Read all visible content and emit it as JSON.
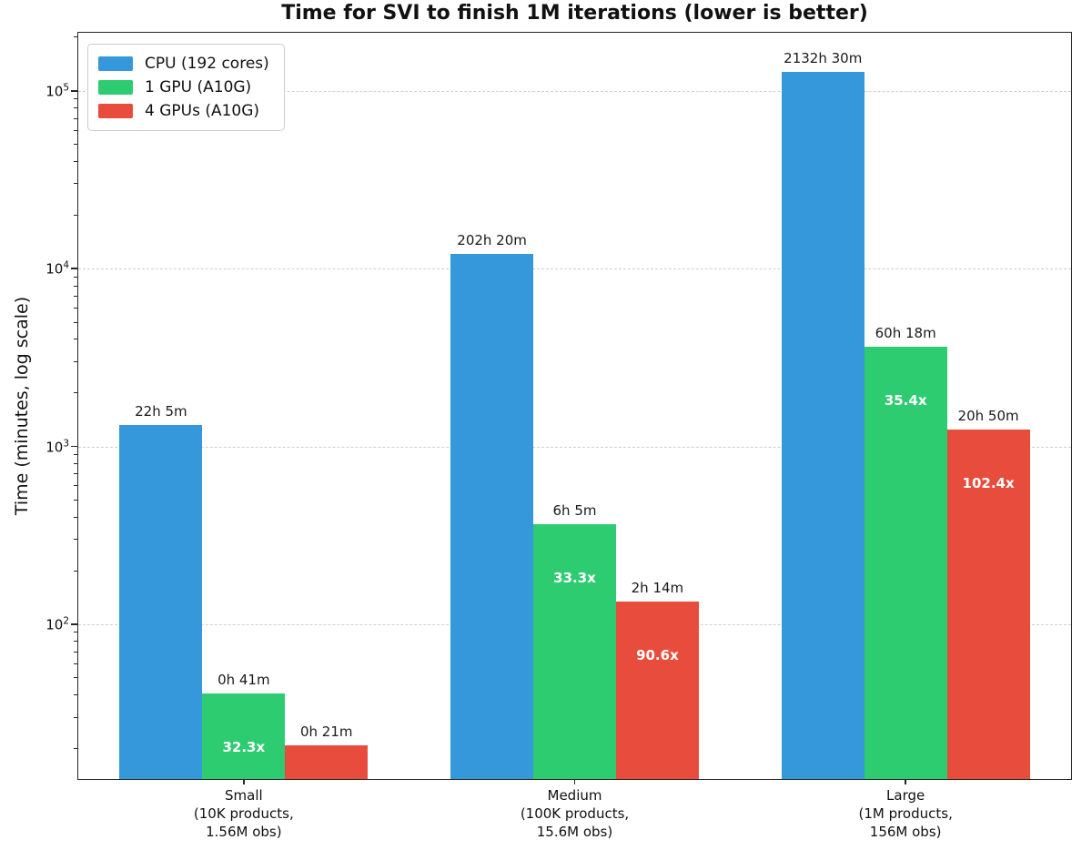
{
  "title": "Time for SVI to finish 1M iterations (lower is better)",
  "chart_data": {
    "type": "bar",
    "title": "Time for SVI to finish 1M iterations (lower is better)",
    "ylabel": "Time (minutes, log scale)",
    "yscale": "log",
    "ylim": [
      13.5,
      212000
    ],
    "yticks": [
      100,
      1000,
      10000,
      100000
    ],
    "grid": "horizontal-dashed",
    "legend_position": "upper-left",
    "bar_width_fraction": 0.25,
    "categories": [
      {
        "key": "small",
        "lines": [
          "Small",
          "(10K products,",
          "1.56M obs)"
        ]
      },
      {
        "key": "medium",
        "lines": [
          "Medium",
          "(100K products,",
          "15.6M obs)"
        ]
      },
      {
        "key": "large",
        "lines": [
          "Large",
          "(1M products,",
          "156M obs)"
        ]
      }
    ],
    "series": [
      {
        "key": "cpu",
        "name": "CPU (192 cores)",
        "color": "#3498db",
        "values_minutes": [
          1325,
          12140,
          127950
        ],
        "bar_labels": [
          "22h 5m",
          "202h 20m",
          "2132h 30m"
        ],
        "speedup_labels": [
          null,
          null,
          null
        ]
      },
      {
        "key": "1gpu",
        "name": "1 GPU (A10G)",
        "color": "#2ecc71",
        "values_minutes": [
          41,
          365,
          3618
        ],
        "bar_labels": [
          "0h 41m",
          "6h 5m",
          "60h 18m"
        ],
        "speedup_labels": [
          "32.3x",
          "33.3x",
          "35.4x"
        ]
      },
      {
        "key": "4gpu",
        "name": "4 GPUs (A10G)",
        "color": "#e74c3c",
        "values_minutes": [
          21,
          134,
          1250
        ],
        "bar_labels": [
          "0h 21m",
          "2h 14m",
          "20h 50m"
        ],
        "speedup_labels": [
          null,
          "90.6x",
          "102.4x"
        ]
      }
    ]
  }
}
